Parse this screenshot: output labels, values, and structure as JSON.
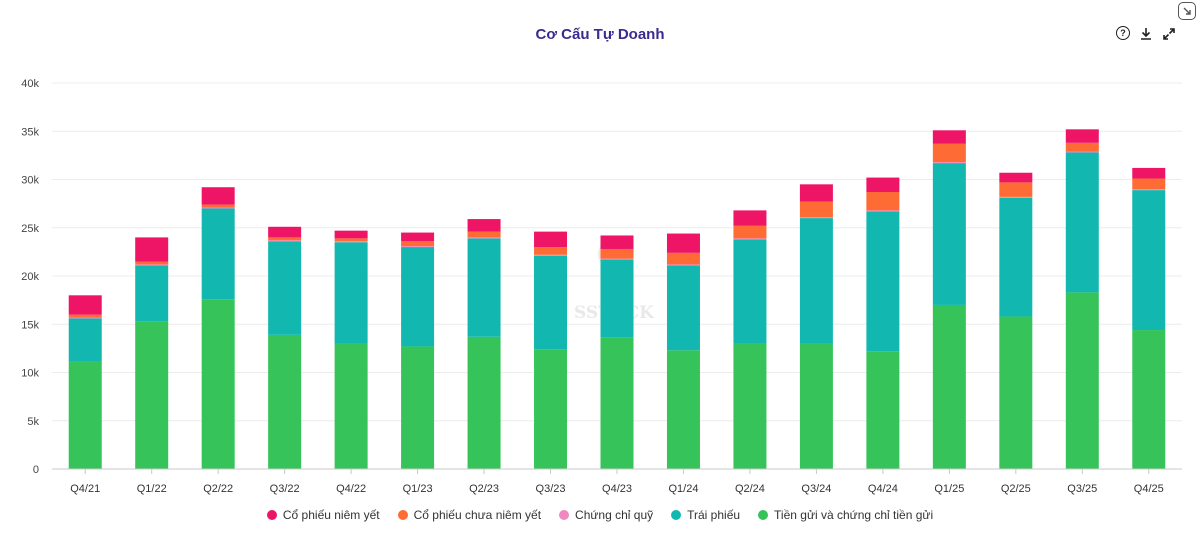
{
  "header": {
    "title": "Cơ Cấu Tự Doanh"
  },
  "toolbar": {
    "help_icon": "question-circle-icon",
    "download_icon": "download-icon",
    "expand_icon": "expand-icon",
    "corner_icon": "collapse-corner-icon"
  },
  "watermark": "SSTOCK",
  "chart_data": {
    "type": "bar",
    "stacked": true,
    "title": "Cơ Cấu Tự Doanh",
    "xlabel": "",
    "ylabel": "",
    "ylim": [
      0,
      40000
    ],
    "yticks": [
      0,
      5000,
      10000,
      15000,
      20000,
      25000,
      30000,
      35000,
      40000
    ],
    "ytick_labels": [
      "0",
      "5k",
      "10k",
      "15k",
      "20k",
      "25k",
      "30k",
      "35k",
      "40k"
    ],
    "grid": true,
    "legend_position": "bottom",
    "categories": [
      "Q4/21",
      "Q1/22",
      "Q2/22",
      "Q3/22",
      "Q4/22",
      "Q1/23",
      "Q2/23",
      "Q3/23",
      "Q4/23",
      "Q1/24",
      "Q2/24",
      "Q3/24",
      "Q4/24",
      "Q1/25",
      "Q2/25",
      "Q3/25",
      "Q4/25"
    ],
    "series": [
      {
        "name": "Tiền gửi và chứng chỉ tiền gửi",
        "color": "#36c45a",
        "values": [
          11100,
          15300,
          17600,
          13900,
          13000,
          12700,
          13700,
          12400,
          13600,
          12300,
          13000,
          13000,
          12200,
          17000,
          15800,
          18300,
          14400
        ]
      },
      {
        "name": "Trái phiếu",
        "color": "#12b8b0",
        "values": [
          4500,
          5800,
          9400,
          9700,
          10500,
          10300,
          10200,
          9700,
          8100,
          8800,
          10800,
          13000,
          14500,
          14700,
          12300,
          14500,
          14500
        ]
      },
      {
        "name": "Chứng chỉ quỹ",
        "color": "#f087c0",
        "values": [
          100,
          100,
          100,
          100,
          100,
          100,
          100,
          100,
          100,
          100,
          100,
          100,
          100,
          100,
          100,
          100,
          100
        ]
      },
      {
        "name": "Cổ phiếu chưa niêm yết",
        "color": "#ff6b35",
        "values": [
          300,
          300,
          300,
          300,
          300,
          500,
          600,
          800,
          1000,
          1200,
          1300,
          1600,
          1900,
          1900,
          1500,
          900,
          1100
        ]
      },
      {
        "name": "Cổ phiếu niêm yết",
        "color": "#ee1566",
        "values": [
          2000,
          2500,
          1800,
          1100,
          800,
          900,
          1300,
          1600,
          1400,
          2000,
          1600,
          1800,
          1500,
          1400,
          1000,
          1400,
          1100
        ]
      }
    ]
  },
  "legend": {
    "items": [
      {
        "label": "Cổ phiếu niêm yết",
        "color": "#ee1566"
      },
      {
        "label": "Cổ phiếu chưa niêm yết",
        "color": "#ff6b35"
      },
      {
        "label": "Chứng chỉ quỹ",
        "color": "#f087c0"
      },
      {
        "label": "Trái phiếu",
        "color": "#12b8b0"
      },
      {
        "label": "Tiền gửi và chứng chỉ tiền gửi",
        "color": "#36c45a"
      }
    ]
  }
}
